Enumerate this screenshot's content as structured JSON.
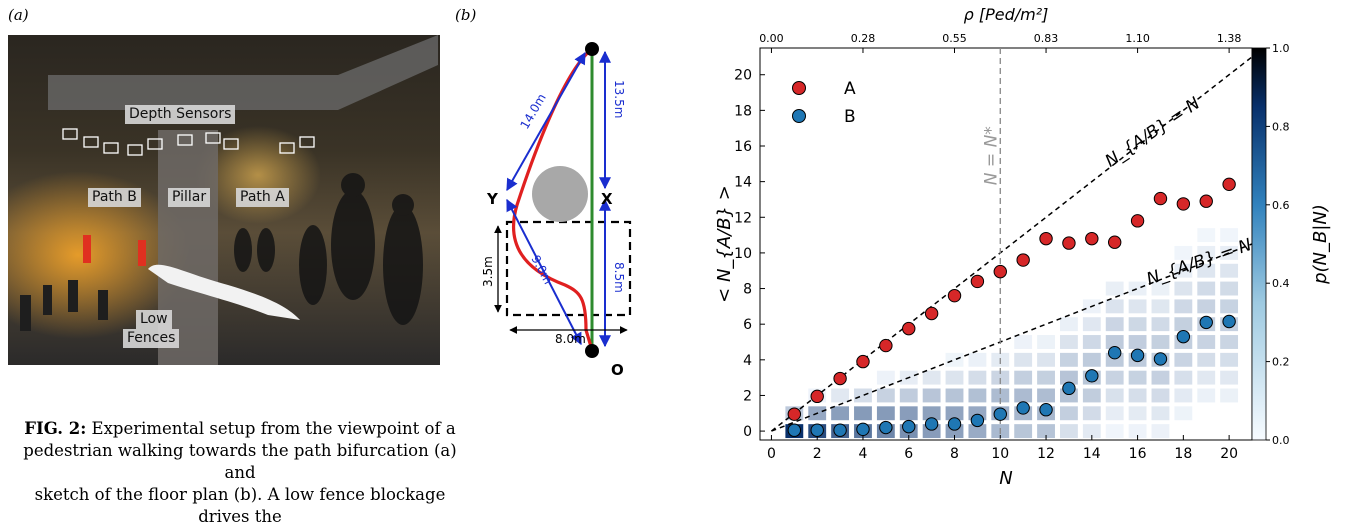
{
  "panel_a": {
    "tag": "(a)",
    "labels": {
      "depth_sensors": "Depth Sensors",
      "path_b": "Path B",
      "pillar": "Pillar",
      "path_a": "Path A",
      "low": "Low",
      "fences": "Fences"
    }
  },
  "panel_b": {
    "tag": "(b)",
    "node_y": "Y",
    "node_x": "X",
    "node_o": "O",
    "dim_14": "14.0m",
    "dim_135": "13.5m",
    "dim_35": "3.5m",
    "dim_9": "9.0m",
    "dim_85": "8.5m",
    "dim_80": "8.0m",
    "colors": {
      "path_a": "#2e8b2e",
      "path_b": "#e02020",
      "dims": "#1a2ecf",
      "pillar": "#a8a8a8"
    }
  },
  "caption": {
    "fig_label": "FIG. 2:",
    "line1": " Experimental setup from the viewpoint of a",
    "line2": "pedestrian walking towards the path bifurcation (a) and",
    "line3": "sketch of the floor plan (b). A low fence blockage drives the"
  },
  "chart_data": {
    "type": "scatter",
    "xlabel": "N",
    "ylabel": "< N_{A/B} >",
    "top_axis_label": "ρ [Ped/m²]",
    "xlim": [
      -0.5,
      21
    ],
    "ylim": [
      -0.5,
      21.5
    ],
    "x_ticks": [
      0,
      2,
      4,
      6,
      8,
      10,
      12,
      14,
      16,
      18,
      20
    ],
    "y_ticks": [
      0,
      2,
      4,
      6,
      8,
      10,
      12,
      14,
      16,
      18,
      20
    ],
    "top_ticks": [
      {
        "n": 0,
        "label": "0.00"
      },
      {
        "n": 4,
        "label": "0.28"
      },
      {
        "n": 8,
        "label": "0.55"
      },
      {
        "n": 12,
        "label": "0.83"
      },
      {
        "n": 16,
        "label": "1.10"
      },
      {
        "n": 20,
        "label": "1.38"
      }
    ],
    "series": [
      {
        "name": "A",
        "color": "#d62728",
        "x": [
          1,
          2,
          3,
          4,
          5,
          6,
          7,
          8,
          9,
          10,
          11,
          12,
          13,
          14,
          15,
          16,
          17,
          18,
          19,
          20
        ],
        "values": [
          0.95,
          1.95,
          2.95,
          3.9,
          4.8,
          5.75,
          6.6,
          7.6,
          8.4,
          8.95,
          9.6,
          10.8,
          10.55,
          10.8,
          10.6,
          11.8,
          13.05,
          12.75,
          12.9,
          13.85
        ]
      },
      {
        "name": "B",
        "color": "#1f77b4",
        "x": [
          1,
          2,
          3,
          4,
          5,
          6,
          7,
          8,
          9,
          10,
          11,
          12,
          13,
          14,
          15,
          16,
          17,
          18,
          19,
          20
        ],
        "values": [
          0.05,
          0.05,
          0.05,
          0.1,
          0.2,
          0.25,
          0.4,
          0.4,
          0.6,
          0.95,
          1.3,
          1.2,
          2.4,
          3.1,
          4.4,
          4.25,
          4.05,
          5.3,
          6.1,
          6.15
        ]
      }
    ],
    "lines": [
      {
        "label": "N_{A/B} = N",
        "slope": 1
      },
      {
        "label": "N_{A/B} = N/2",
        "slope": 0.5
      }
    ],
    "vline": {
      "x": 10,
      "label": "N = N*"
    },
    "colorbar": {
      "label": "p(N_B|N)",
      "min": 0.0,
      "max": 1.0,
      "ticks": [
        "0.0",
        "0.2",
        "0.4",
        "0.6",
        "0.8",
        "1.0"
      ]
    },
    "legend_position": "top-left",
    "grid": false
  }
}
